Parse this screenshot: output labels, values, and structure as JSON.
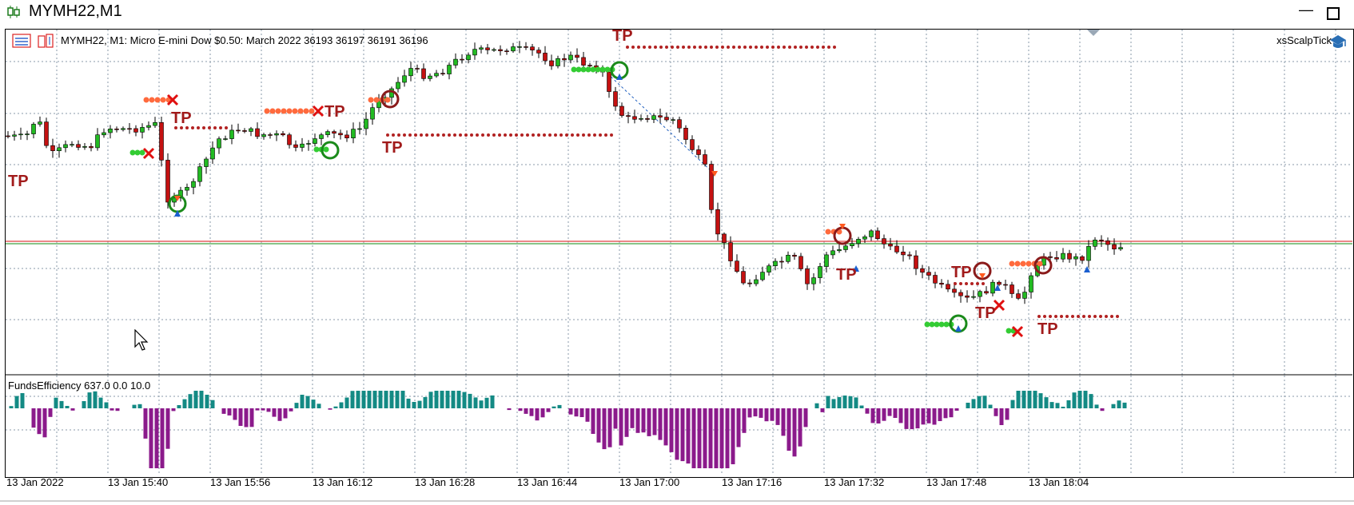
{
  "window": {
    "title": "MYMH22,M1"
  },
  "chart": {
    "symbol_line": "MYMH22, M1:  Micro E-mini Dow $0.50: March 2022  36193 36197 36191 36196",
    "indicator_name": "xsScalpTick",
    "tp_label": "TP",
    "sub_window_label": "FundsEfficiency 637.0 0.0 10.0"
  },
  "time_axis": [
    "13 Jan 2022",
    "13 Jan 15:40",
    "13 Jan 15:56",
    "13 Jan 16:12",
    "13 Jan 16:28",
    "13 Jan 16:44",
    "13 Jan 17:00",
    "13 Jan 17:16",
    "13 Jan 17:32",
    "13 Jan 17:48",
    "13 Jan 18:04"
  ],
  "colors": {
    "bull": "#22bb22",
    "bear": "#c41111",
    "wick": "#000000",
    "grid": "#8a9aa8",
    "hist_pos": "#138a84",
    "hist_neg": "#8b1a8b",
    "tp_text": "#a11a1a",
    "marker_green": "#33cc33",
    "marker_orange": "#ff6a3d"
  }
}
